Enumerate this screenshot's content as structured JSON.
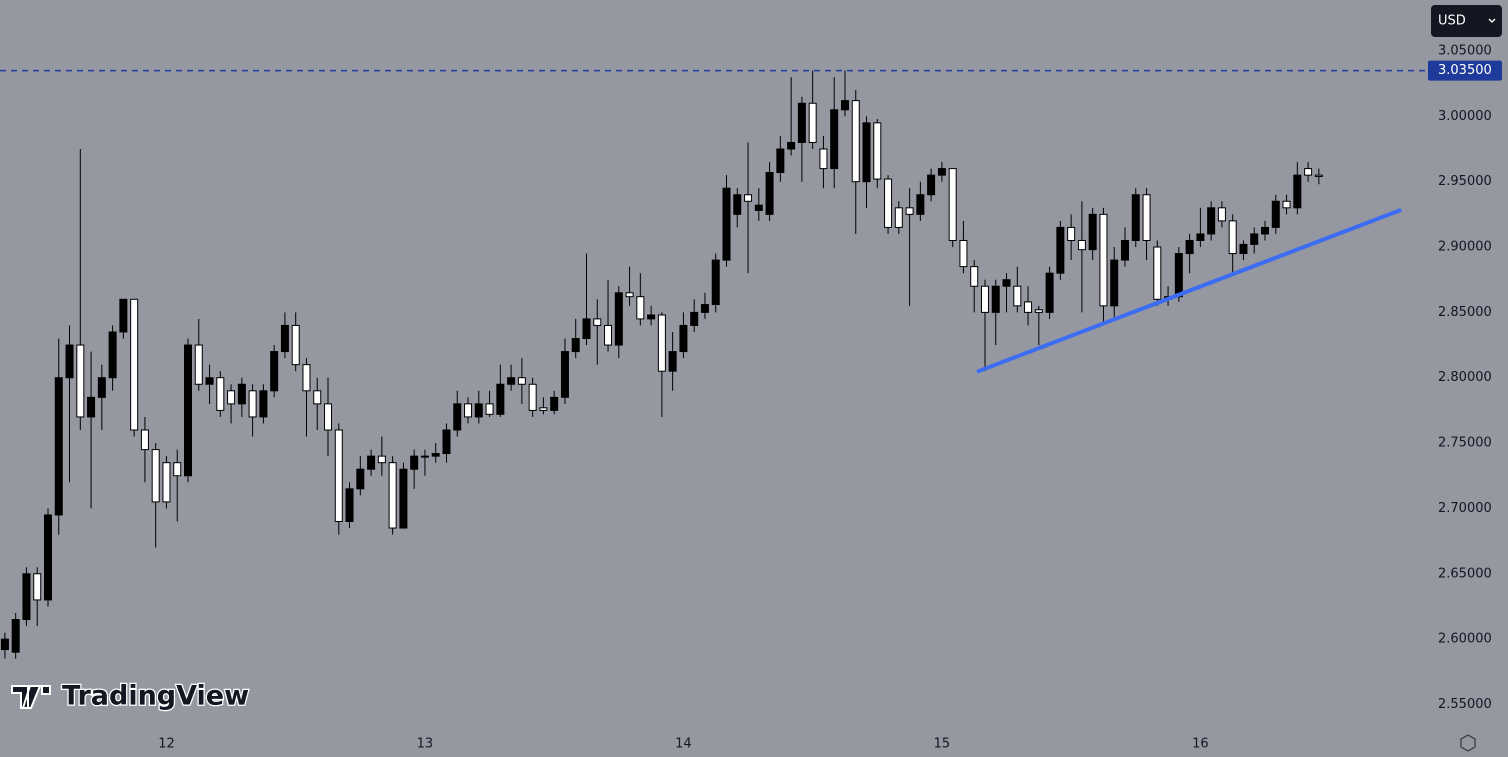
{
  "chart_data": {
    "type": "candlestick",
    "currency": "USD",
    "watermark": "TradingView",
    "up_color": "#000000",
    "down_color": "#ffffff",
    "wick_color": "#000000",
    "x": [
      11.375,
      11.4167,
      11.4583,
      11.5,
      11.5417,
      11.5833,
      11.625,
      11.6667,
      11.7083,
      11.75,
      11.7917,
      11.8333,
      11.875,
      11.9167,
      11.9583,
      12,
      12.0417,
      12.0833,
      12.125,
      12.1667,
      12.2083,
      12.25,
      12.2917,
      12.3333,
      12.375,
      12.4167,
      12.4583,
      12.5,
      12.5417,
      12.5833,
      12.625,
      12.6667,
      12.7083,
      12.75,
      12.7917,
      12.8333,
      12.875,
      12.9167,
      12.9583,
      13,
      13.0417,
      13.0833,
      13.125,
      13.1667,
      13.2083,
      13.25,
      13.2917,
      13.3333,
      13.375,
      13.4167,
      13.4583,
      13.5,
      13.5417,
      13.5833,
      13.625,
      13.6667,
      13.7083,
      13.75,
      13.7917,
      13.8333,
      13.875,
      13.9167,
      13.9583,
      14,
      14.0417,
      14.0833,
      14.125,
      14.1667,
      14.2083,
      14.25,
      14.2917,
      14.3333,
      14.375,
      14.4167,
      14.4583,
      14.5,
      14.5417,
      14.5833,
      14.625,
      14.6667,
      14.7083,
      14.75,
      14.7917,
      14.8333,
      14.875,
      14.9167,
      14.9583,
      15,
      15.0417,
      15.0833,
      15.125,
      15.1667,
      15.2083,
      15.25,
      15.2917,
      15.3333,
      15.375,
      15.4167,
      15.4583,
      15.5,
      15.5417,
      15.5833,
      15.625,
      15.6667,
      15.7083,
      15.75,
      15.7917,
      15.8333,
      15.875,
      15.9167,
      15.9583,
      16,
      16.0417,
      16.0833,
      16.125,
      16.1667,
      16.2083,
      16.25,
      16.2917,
      16.3333,
      16.375,
      16.4167,
      16.4583
    ],
    "open": [
      2.592,
      2.59,
      2.615,
      2.65,
      2.63,
      2.695,
      2.8,
      2.825,
      2.77,
      2.785,
      2.8,
      2.835,
      2.86,
      2.76,
      2.745,
      2.735,
      2.735,
      2.725,
      2.825,
      2.795,
      2.8,
      2.79,
      2.78,
      2.79,
      2.77,
      2.79,
      2.82,
      2.84,
      2.81,
      2.79,
      2.78,
      2.76,
      2.69,
      2.715,
      2.73,
      2.74,
      2.735,
      2.685,
      2.73,
      2.74,
      2.74,
      2.742,
      2.76,
      2.78,
      2.77,
      2.78,
      2.772,
      2.795,
      2.8,
      2.795,
      2.777,
      2.775,
      2.785,
      2.82,
      2.83,
      2.845,
      2.84,
      2.825,
      2.865,
      2.862,
      2.845,
      2.848,
      2.805,
      2.82,
      2.84,
      2.85,
      2.856,
      2.89,
      2.925,
      2.94,
      2.928,
      2.925,
      2.957,
      2.975,
      2.98,
      3.01,
      2.975,
      2.96,
      3.005,
      3.012,
      2.95,
      2.995,
      2.952,
      2.93,
      2.93,
      2.925,
      2.94,
      2.955,
      2.96,
      2.905,
      2.885,
      2.87,
      2.85,
      2.87,
      2.87,
      2.858,
      2.852,
      2.85,
      2.88,
      2.915,
      2.905,
      2.898,
      2.925,
      2.855,
      2.89,
      2.905,
      2.94,
      2.9,
      2.86,
      2.862,
      2.895,
      2.905,
      2.91,
      2.93,
      2.92,
      2.895,
      2.902,
      2.91,
      2.915,
      2.935,
      2.93,
      2.96,
      2.955
    ],
    "high": [
      2.605,
      2.62,
      2.655,
      2.655,
      2.7,
      2.83,
      2.84,
      2.975,
      2.82,
      2.81,
      2.84,
      2.86,
      2.86,
      2.77,
      2.75,
      2.74,
      2.745,
      2.83,
      2.845,
      2.81,
      2.805,
      2.795,
      2.8,
      2.795,
      2.795,
      2.825,
      2.85,
      2.85,
      2.815,
      2.8,
      2.8,
      2.765,
      2.72,
      2.74,
      2.745,
      2.755,
      2.74,
      2.735,
      2.745,
      2.745,
      2.75,
      2.765,
      2.79,
      2.785,
      2.79,
      2.79,
      2.81,
      2.81,
      2.815,
      2.8,
      2.785,
      2.79,
      2.83,
      2.845,
      2.895,
      2.86,
      2.875,
      2.87,
      2.885,
      2.88,
      2.855,
      2.85,
      2.835,
      2.85,
      2.86,
      2.865,
      2.895,
      2.955,
      2.945,
      2.98,
      2.945,
      2.965,
      2.985,
      3.03,
      3.015,
      3.035,
      2.985,
      3.03,
      3.035,
      3.02,
      3.0,
      2.998,
      2.955,
      2.935,
      2.945,
      2.95,
      2.96,
      2.965,
      2.96,
      2.92,
      2.89,
      2.875,
      2.875,
      2.88,
      2.885,
      2.87,
      2.855,
      2.885,
      2.92,
      2.925,
      2.935,
      2.93,
      2.93,
      2.9,
      2.915,
      2.945,
      2.945,
      2.905,
      2.87,
      2.9,
      2.91,
      2.93,
      2.935,
      2.935,
      2.925,
      2.905,
      2.915,
      2.92,
      2.94,
      2.94,
      2.965,
      2.965,
      2.96
    ],
    "low": [
      2.585,
      2.585,
      2.61,
      2.61,
      2.625,
      2.68,
      2.72,
      2.76,
      2.7,
      2.76,
      2.79,
      2.83,
      2.755,
      2.72,
      2.67,
      2.7,
      2.69,
      2.72,
      2.79,
      2.78,
      2.77,
      2.765,
      2.77,
      2.755,
      2.765,
      2.785,
      2.815,
      2.805,
      2.755,
      2.76,
      2.74,
      2.68,
      2.685,
      2.71,
      2.725,
      2.725,
      2.68,
      2.685,
      2.715,
      2.725,
      2.735,
      2.735,
      2.755,
      2.765,
      2.765,
      2.77,
      2.77,
      2.79,
      2.78,
      2.77,
      2.772,
      2.772,
      2.78,
      2.815,
      2.825,
      2.81,
      2.82,
      2.815,
      2.855,
      2.84,
      2.84,
      2.77,
      2.79,
      2.815,
      2.835,
      2.845,
      2.85,
      2.885,
      2.915,
      2.88,
      2.92,
      2.92,
      2.95,
      2.97,
      2.95,
      2.975,
      2.945,
      2.945,
      3.0,
      2.91,
      2.93,
      2.945,
      2.91,
      2.91,
      2.855,
      2.92,
      2.935,
      2.95,
      2.9,
      2.88,
      2.85,
      2.805,
      2.825,
      2.85,
      2.85,
      2.84,
      2.825,
      2.845,
      2.875,
      2.89,
      2.85,
      2.89,
      2.84,
      2.845,
      2.885,
      2.9,
      2.89,
      2.855,
      2.855,
      2.858,
      2.88,
      2.9,
      2.905,
      2.915,
      2.88,
      2.89,
      2.895,
      2.905,
      2.91,
      2.925,
      2.925,
      2.95,
      2.948
    ],
    "close": [
      2.6,
      2.615,
      2.65,
      2.63,
      2.695,
      2.8,
      2.825,
      2.77,
      2.785,
      2.8,
      2.835,
      2.86,
      2.76,
      2.745,
      2.705,
      2.705,
      2.725,
      2.825,
      2.795,
      2.8,
      2.775,
      2.78,
      2.795,
      2.77,
      2.79,
      2.82,
      2.84,
      2.81,
      2.79,
      2.78,
      2.76,
      2.69,
      2.715,
      2.73,
      2.74,
      2.735,
      2.685,
      2.73,
      2.74,
      2.74,
      2.742,
      2.76,
      2.78,
      2.77,
      2.78,
      2.772,
      2.795,
      2.8,
      2.795,
      2.775,
      2.775,
      2.785,
      2.82,
      2.83,
      2.845,
      2.84,
      2.825,
      2.865,
      2.862,
      2.845,
      2.848,
      2.805,
      2.82,
      2.84,
      2.85,
      2.856,
      2.89,
      2.945,
      2.94,
      2.935,
      2.932,
      2.957,
      2.975,
      2.98,
      3.01,
      2.98,
      2.96,
      3.005,
      3.012,
      2.95,
      2.995,
      2.952,
      2.915,
      2.915,
      2.925,
      2.94,
      2.955,
      2.96,
      2.905,
      2.885,
      2.87,
      2.85,
      2.87,
      2.875,
      2.855,
      2.85,
      2.85,
      2.88,
      2.915,
      2.905,
      2.898,
      2.925,
      2.855,
      2.89,
      2.905,
      2.94,
      2.905,
      2.86,
      2.862,
      2.895,
      2.905,
      2.91,
      2.93,
      2.92,
      2.895,
      2.902,
      2.91,
      2.915,
      2.935,
      2.93,
      2.955,
      2.955,
      2.954
    ],
    "xlim": [
      11.356,
      16.869
    ],
    "ylim": [
      2.532,
      3.089
    ],
    "xticks": [
      12,
      13,
      14,
      15,
      16
    ],
    "yticks": [
      {
        "value": 2.55,
        "label": "2.55000"
      },
      {
        "value": 2.6,
        "label": "2.60000"
      },
      {
        "value": 2.65,
        "label": "2.65000"
      },
      {
        "value": 2.7,
        "label": "2.70000"
      },
      {
        "value": 2.75,
        "label": "2.75000"
      },
      {
        "value": 2.8,
        "label": "2.80000"
      },
      {
        "value": 2.85,
        "label": "2.85000"
      },
      {
        "value": 2.9,
        "label": "2.90000"
      },
      {
        "value": 2.95,
        "label": "2.95000"
      },
      {
        "value": 3.0,
        "label": "3.00000"
      },
      {
        "value": 3.05,
        "label": "3.05000"
      }
    ],
    "price_line": {
      "value": 3.035,
      "label": "3.03500",
      "color": "#1e3a9a"
    },
    "trendline": {
      "x": [
        15.142,
        16.771
      ],
      "y": [
        2.805,
        2.928
      ],
      "color": "#3b6cf2"
    },
    "grid": false,
    "background": "#9598a1"
  }
}
